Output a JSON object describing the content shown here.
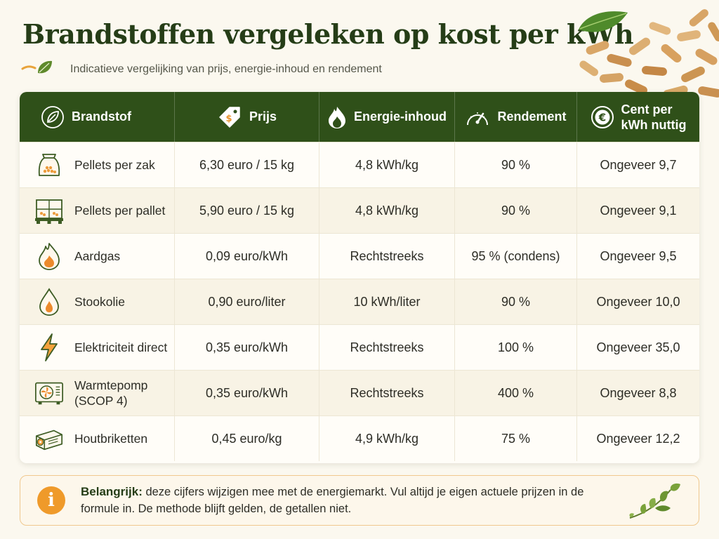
{
  "page": {
    "title": "Brandstoffen vergeleken op kost per kWh",
    "subtitle": "Indicatieve vergelijking van prijs, energie-inhoud en rendement"
  },
  "table": {
    "headers": [
      {
        "label": "Brandstof",
        "icon": "leaf-icon"
      },
      {
        "label": "Prijs",
        "icon": "price-tag-icon"
      },
      {
        "label": "Energie-inhoud",
        "icon": "flame-icon"
      },
      {
        "label": "Rendement",
        "icon": "gauge-icon"
      },
      {
        "label": "Cent per kWh nuttig",
        "label_line1": "Cent per",
        "label_line2": "kWh nuttig",
        "icon": "euro-icon"
      }
    ],
    "rows": [
      {
        "icon": "pellet-bag-icon",
        "brandstof": "Pellets per zak",
        "prijs": "6,30 euro / 15 kg",
        "energie": "4,8 kWh/kg",
        "rendement": "90 %",
        "cent": "Ongeveer 9,7"
      },
      {
        "icon": "pellet-pallet-icon",
        "brandstof": "Pellets per pallet",
        "prijs": "5,90 euro / 15 kg",
        "energie": "4,8 kWh/kg",
        "rendement": "90 %",
        "cent": "Ongeveer 9,1"
      },
      {
        "icon": "gas-flame-icon",
        "brandstof": "Aardgas",
        "prijs": "0,09 euro/kWh",
        "energie": "Rechtstreeks",
        "rendement": "95 % (condens)",
        "cent": "Ongeveer 9,5"
      },
      {
        "icon": "oil-drop-icon",
        "brandstof": "Stookolie",
        "prijs": "0,90 euro/liter",
        "energie": "10 kWh/liter",
        "rendement": "90 %",
        "cent": "Ongeveer 10,0"
      },
      {
        "icon": "lightning-icon",
        "brandstof": "Elektriciteit direct",
        "prijs": "0,35 euro/kWh",
        "energie": "Rechtstreeks",
        "rendement": "100 %",
        "cent": "Ongeveer 35,0"
      },
      {
        "icon": "heat-pump-icon",
        "brandstof": "Warmtepomp (SCOP 4)",
        "brandstof_line1": "Warmtepomp",
        "brandstof_line2": "(SCOP 4)",
        "prijs": "0,35 euro/kWh",
        "energie": "Rechtstreeks",
        "rendement": "400 %",
        "cent": "Ongeveer 8,8"
      },
      {
        "icon": "wood-briquette-icon",
        "brandstof": "Houtbriketten",
        "prijs": "0,45 euro/kg",
        "energie": "4,9 kWh/kg",
        "rendement": "75 %",
        "cent": "Ongeveer 12,2"
      }
    ]
  },
  "note": {
    "bold": "Belangrijk:",
    "text": " deze cijfers wijzigen mee met de energiemarkt. Vul altijd je eigen actuele prijzen in de formule in. De methode blijft gelden, de getallen niet.",
    "icon": "info-icon",
    "info_glyph": "i"
  },
  "colors": {
    "header_bg": "#2f5019",
    "title": "#253d17",
    "accent_orange": "#ef9a2a",
    "background": "#fbf8ef"
  }
}
